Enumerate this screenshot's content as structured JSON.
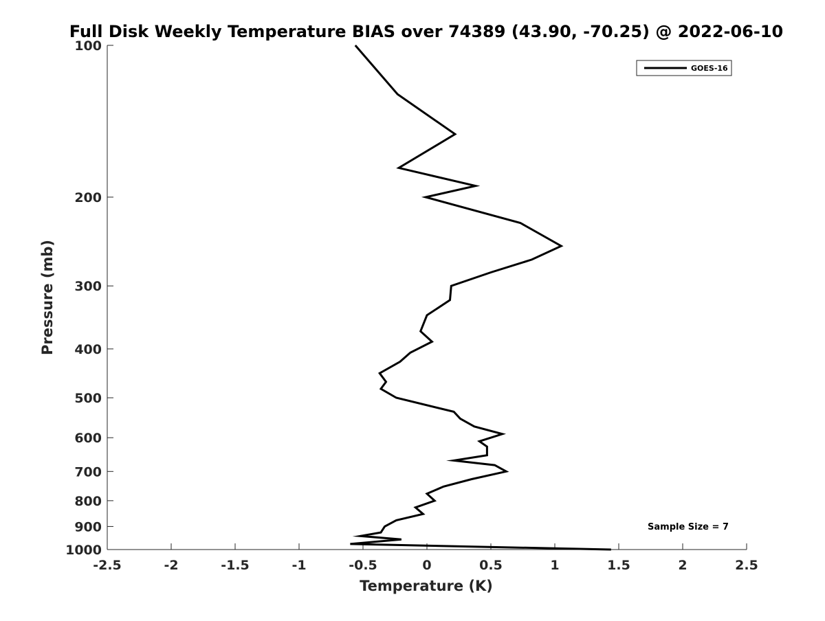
{
  "chart_data": {
    "type": "line",
    "title": "Full Disk Weekly Temperature BIAS over 74389 (43.90, -70.25) @ 2022-06-10",
    "xlabel": "Temperature (K)",
    "ylabel": "Pressure (mb)",
    "xlim": [
      -2.5,
      2.5
    ],
    "ylim": [
      100,
      1000
    ],
    "y_scale": "log",
    "y_reversed": true,
    "grid": false,
    "legend_position": "top-right",
    "x_ticks": [
      -2.5,
      -2,
      -1.5,
      -1,
      -0.5,
      0,
      0.5,
      1,
      1.5,
      2,
      2.5
    ],
    "x_tick_labels": [
      "-2.5",
      "-2",
      "-1.5",
      "-1",
      "-0.5",
      "0",
      "0.5",
      "1",
      "1.5",
      "2",
      "2.5"
    ],
    "y_ticks": [
      100,
      200,
      300,
      400,
      500,
      600,
      700,
      800,
      900,
      1000
    ],
    "y_tick_labels": [
      "100",
      "200",
      "300",
      "400",
      "500",
      "600",
      "700",
      "800",
      "900",
      "1000"
    ],
    "series": [
      {
        "name": "GOES-16",
        "color": "#000000",
        "points": [
          [
            -0.56,
            100
          ],
          [
            -0.23,
            125
          ],
          [
            0.22,
            150
          ],
          [
            -0.22,
            175
          ],
          [
            0.38,
            190
          ],
          [
            -0.01,
            200
          ],
          [
            0.73,
            225
          ],
          [
            1.05,
            250
          ],
          [
            0.82,
            266
          ],
          [
            0.5,
            282
          ],
          [
            0.19,
            300
          ],
          [
            0.18,
            320
          ],
          [
            0.0,
            343
          ],
          [
            -0.05,
            369
          ],
          [
            0.04,
            387
          ],
          [
            -0.13,
            407
          ],
          [
            -0.21,
            424
          ],
          [
            -0.37,
            447
          ],
          [
            -0.32,
            465
          ],
          [
            -0.36,
            480
          ],
          [
            -0.24,
            500
          ],
          [
            0.21,
            533
          ],
          [
            0.26,
            550
          ],
          [
            0.37,
            570
          ],
          [
            0.59,
            590
          ],
          [
            0.41,
            610
          ],
          [
            0.47,
            625
          ],
          [
            0.47,
            650
          ],
          [
            0.21,
            666
          ],
          [
            0.53,
            680
          ],
          [
            0.62,
            700
          ],
          [
            0.35,
            725
          ],
          [
            0.13,
            750
          ],
          [
            0.0,
            775
          ],
          [
            0.06,
            800
          ],
          [
            -0.09,
            825
          ],
          [
            -0.03,
            850
          ],
          [
            -0.24,
            875
          ],
          [
            -0.33,
            900
          ],
          [
            -0.36,
            925
          ],
          [
            -0.52,
            940
          ],
          [
            -0.2,
            955
          ],
          [
            -0.6,
            975
          ],
          [
            1.44,
            1000
          ]
        ]
      }
    ],
    "annotations": [
      "Sample Size = 7"
    ]
  }
}
